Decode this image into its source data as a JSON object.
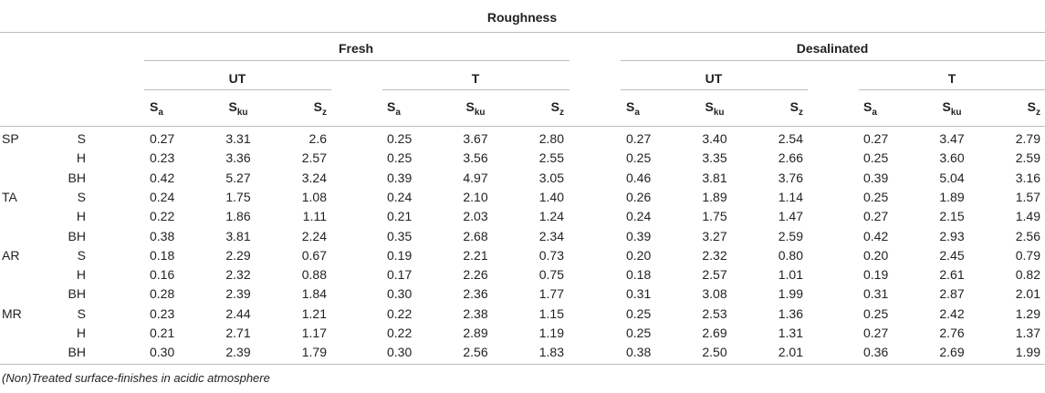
{
  "title": "Roughness",
  "groups": [
    "Fresh",
    "Desalinated"
  ],
  "subgroups": [
    "UT",
    "T",
    "UT",
    "T"
  ],
  "params": [
    {
      "base": "S",
      "sub": "a"
    },
    {
      "base": "S",
      "sub": "ku"
    },
    {
      "base": "S",
      "sub": "z"
    }
  ],
  "rows": [
    {
      "group": "SP",
      "finish": "S",
      "values": [
        "0.27",
        "3.31",
        "2.6",
        "0.25",
        "3.67",
        "2.80",
        "0.27",
        "3.40",
        "2.54",
        "0.27",
        "3.47",
        "2.79"
      ]
    },
    {
      "group": "",
      "finish": "H",
      "values": [
        "0.23",
        "3.36",
        "2.57",
        "0.25",
        "3.56",
        "2.55",
        "0.25",
        "3.35",
        "2.66",
        "0.25",
        "3.60",
        "2.59"
      ]
    },
    {
      "group": "",
      "finish": "BH",
      "values": [
        "0.42",
        "5.27",
        "3.24",
        "0.39",
        "4.97",
        "3.05",
        "0.46",
        "3.81",
        "3.76",
        "0.39",
        "5.04",
        "3.16"
      ]
    },
    {
      "group": "TA",
      "finish": "S",
      "values": [
        "0.24",
        "1.75",
        "1.08",
        "0.24",
        "2.10",
        "1.40",
        "0.26",
        "1.89",
        "1.14",
        "0.25",
        "1.89",
        "1.57"
      ]
    },
    {
      "group": "",
      "finish": "H",
      "values": [
        "0.22",
        "1.86",
        "1.11",
        "0.21",
        "2.03",
        "1.24",
        "0.24",
        "1.75",
        "1.47",
        "0.27",
        "2.15",
        "1.49"
      ]
    },
    {
      "group": "",
      "finish": "BH",
      "values": [
        "0.38",
        "3.81",
        "2.24",
        "0.35",
        "2.68",
        "2.34",
        "0.39",
        "3.27",
        "2.59",
        "0.42",
        "2.93",
        "2.56"
      ]
    },
    {
      "group": "AR",
      "finish": "S",
      "values": [
        "0.18",
        "2.29",
        "0.67",
        "0.19",
        "2.21",
        "0.73",
        "0.20",
        "2.32",
        "0.80",
        "0.20",
        "2.45",
        "0.79"
      ]
    },
    {
      "group": "",
      "finish": "H",
      "values": [
        "0.16",
        "2.32",
        "0.88",
        "0.17",
        "2.26",
        "0.75",
        "0.18",
        "2.57",
        "1.01",
        "0.19",
        "2.61",
        "0.82"
      ]
    },
    {
      "group": "",
      "finish": "BH",
      "values": [
        "0.28",
        "2.39",
        "1.84",
        "0.30",
        "2.36",
        "1.77",
        "0.31",
        "3.08",
        "1.99",
        "0.31",
        "2.87",
        "2.01"
      ]
    },
    {
      "group": "MR",
      "finish": "S",
      "values": [
        "0.23",
        "2.44",
        "1.21",
        "0.22",
        "2.38",
        "1.15",
        "0.25",
        "2.53",
        "1.36",
        "0.25",
        "2.42",
        "1.29"
      ]
    },
    {
      "group": "",
      "finish": "H",
      "values": [
        "0.21",
        "2.71",
        "1.17",
        "0.22",
        "2.89",
        "1.19",
        "0.25",
        "2.69",
        "1.31",
        "0.27",
        "2.76",
        "1.37"
      ]
    },
    {
      "group": "",
      "finish": "BH",
      "values": [
        "0.30",
        "2.39",
        "1.79",
        "0.30",
        "2.56",
        "1.83",
        "0.38",
        "2.50",
        "2.01",
        "0.36",
        "2.69",
        "1.99"
      ]
    }
  ],
  "footnote": "(Non)Treated surface-finishes in acidic atmosphere"
}
